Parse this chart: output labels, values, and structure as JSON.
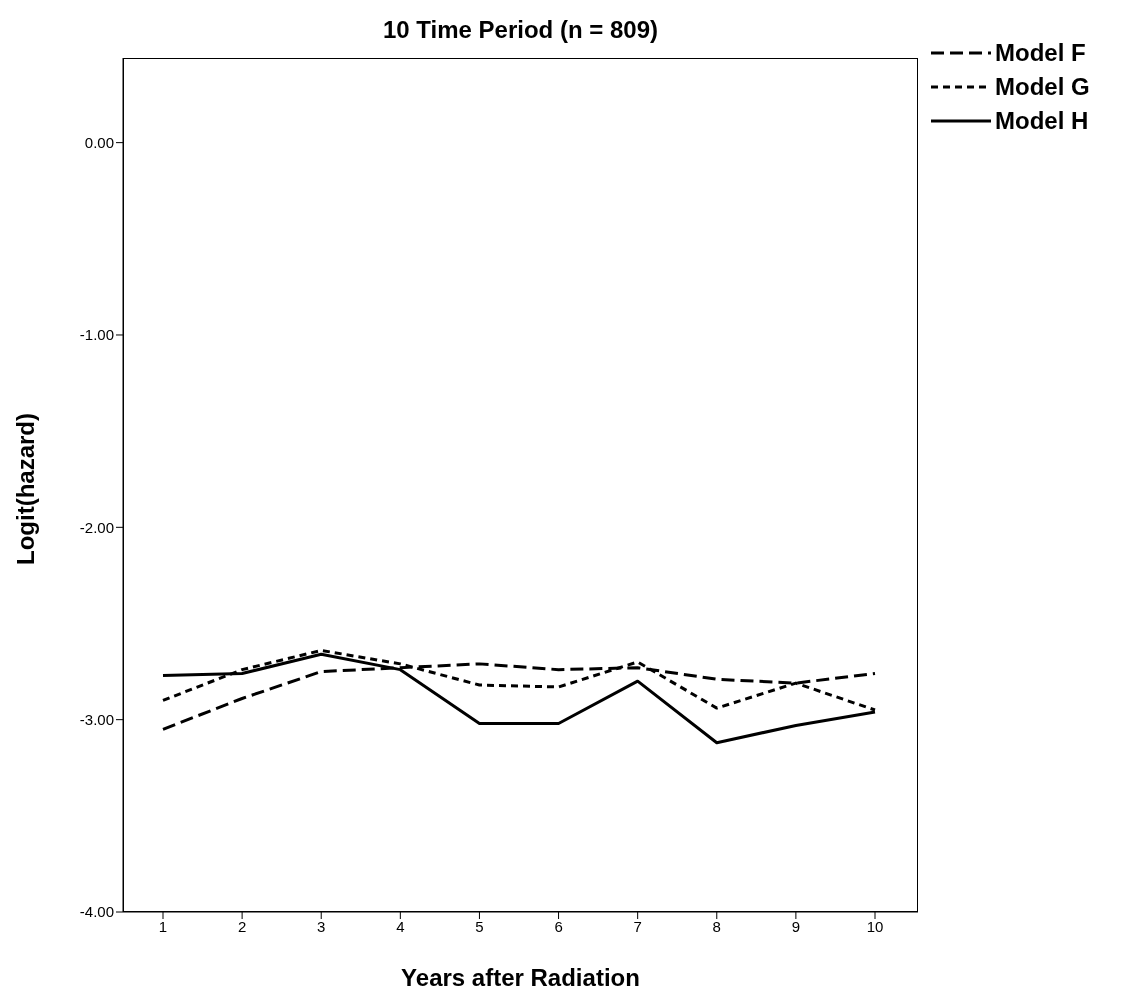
{
  "chart_data": {
    "type": "line",
    "title": "10 Time Period (n = 809)",
    "xlabel": "Years after Radiation",
    "ylabel": "Logit(hazard)",
    "categories": [
      "1",
      "2",
      "3",
      "4",
      "5",
      "6",
      "7",
      "8",
      "9",
      "10"
    ],
    "series": [
      {
        "name": "Model F",
        "color": "#000000",
        "line_style": "dashed",
        "values": [
          -3.05,
          -2.89,
          -2.75,
          -2.73,
          -2.71,
          -2.74,
          -2.73,
          -2.79,
          -2.81,
          -2.76
        ]
      },
      {
        "name": "Model G",
        "color": "#000000",
        "line_style": "dotted",
        "values": [
          -2.9,
          -2.74,
          -2.64,
          -2.71,
          -2.82,
          -2.83,
          -2.7,
          -2.94,
          -2.81,
          -2.95
        ]
      },
      {
        "name": "Model H",
        "color": "#000000",
        "line_style": "solid",
        "values": [
          -2.77,
          -2.76,
          -2.66,
          -2.74,
          -3.02,
          -3.02,
          -2.8,
          -3.12,
          -3.03,
          -2.96
        ]
      }
    ],
    "ylim": [
      -4,
      0.44
    ],
    "yticks": [
      {
        "value": -4,
        "label": "-4.00"
      },
      {
        "value": -3,
        "label": "-3.00"
      },
      {
        "value": -2,
        "label": "-2.00"
      },
      {
        "value": -1,
        "label": "-1.00"
      },
      {
        "value": 0,
        "label": "0.00"
      }
    ],
    "grid": false,
    "legend": "top right",
    "marker": "none"
  }
}
